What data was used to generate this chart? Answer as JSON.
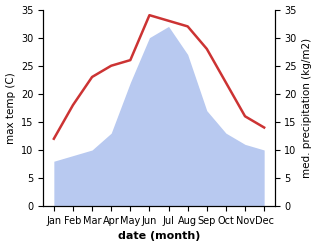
{
  "months": [
    "Jan",
    "Feb",
    "Mar",
    "Apr",
    "May",
    "Jun",
    "Jul",
    "Aug",
    "Sep",
    "Oct",
    "Nov",
    "Dec"
  ],
  "temperature": [
    12,
    18,
    23,
    25,
    26,
    34,
    33,
    32,
    28,
    22,
    16,
    14
  ],
  "precipitation": [
    8,
    9,
    10,
    13,
    22,
    30,
    32,
    27,
    17,
    13,
    11,
    10
  ],
  "temp_color": "#cc3333",
  "precip_color": "#b8c9f0",
  "background_color": "#ffffff",
  "ylabel_left": "max temp (C)",
  "ylabel_right": "med. precipitation (kg/m2)",
  "xlabel": "date (month)",
  "ylim": [
    0,
    35
  ],
  "yticks": [
    0,
    5,
    10,
    15,
    20,
    25,
    30,
    35
  ],
  "temp_linewidth": 1.8,
  "xlabel_fontsize": 8,
  "ylabel_fontsize": 7.5,
  "tick_fontsize": 7
}
